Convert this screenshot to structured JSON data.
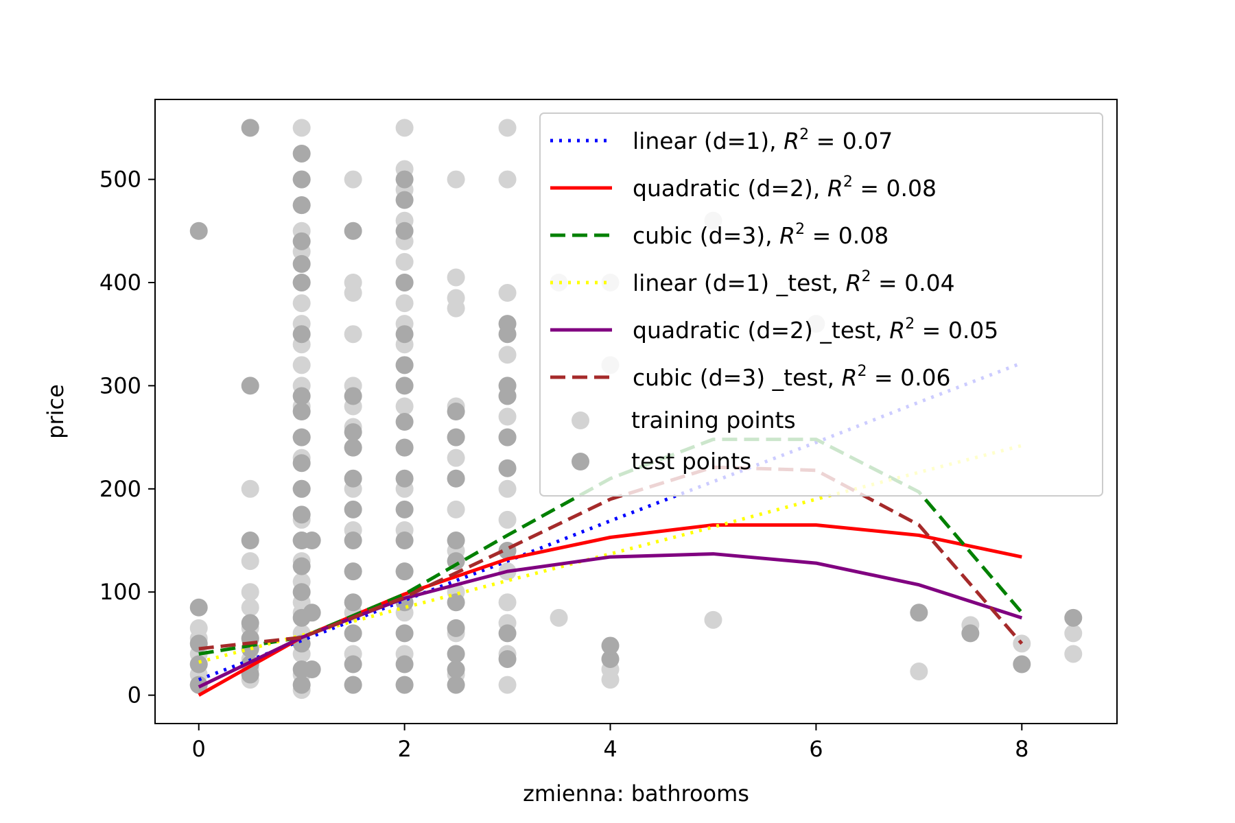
{
  "chart_data": {
    "type": "scatter",
    "xlabel": "zmienna: bathrooms",
    "ylabel": "price",
    "xlim": [
      -0.425,
      8.925
    ],
    "ylim": [
      -27.5,
      577.5
    ],
    "x_ticks": [
      0,
      2,
      4,
      6,
      8
    ],
    "y_ticks": [
      0,
      100,
      200,
      300,
      400,
      500
    ],
    "grid": false,
    "legend_position": "upper-right",
    "lines": [
      {
        "name": "linear (d=1), R^2 = 0.07",
        "label_main": "linear (d=1), ",
        "r2": "0.07",
        "color": "#0000ff",
        "style": "dotted",
        "x": [
          0,
          1,
          2,
          3,
          4,
          5,
          6,
          7,
          8
        ],
        "y": [
          15,
          53,
          92,
          130,
          169,
          207,
          245,
          284,
          322
        ]
      },
      {
        "name": "quadratic (d=2), R^2 = 0.08",
        "label_main": "quadratic (d=2), ",
        "r2": "0.08",
        "color": "#ff0000",
        "style": "solid",
        "x": [
          0,
          1,
          2,
          3,
          4,
          5,
          6,
          7,
          8
        ],
        "y": [
          0,
          56,
          98,
          132,
          153,
          165,
          165,
          155,
          134
        ]
      },
      {
        "name": "cubic (d=3), R^2 = 0.08",
        "label_main": "cubic (d=3), ",
        "r2": "0.08",
        "color": "#008000",
        "style": "dashed",
        "x": [
          0,
          1,
          2,
          3,
          4,
          5,
          6,
          7,
          8
        ],
        "y": [
          40,
          56,
          98,
          155,
          210,
          248,
          248,
          197,
          80
        ]
      },
      {
        "name": "linear (d=1) _test, R^2 = 0.04",
        "label_main": "linear (d=1) _test, ",
        "r2": "0.04",
        "color": "#ffff00",
        "style": "dotted",
        "x": [
          0,
          1,
          2,
          3,
          4,
          5,
          6,
          7,
          8
        ],
        "y": [
          32,
          58,
          85,
          111,
          137,
          163,
          190,
          216,
          242
        ]
      },
      {
        "name": "quadratic (d=2) _test, R^2 = 0.05",
        "label_main": "quadratic (d=2) _test, ",
        "r2": "0.05",
        "color": "#800080",
        "style": "solid",
        "x": [
          0,
          1,
          2,
          3,
          4,
          5,
          6,
          7,
          8
        ],
        "y": [
          8,
          56,
          94,
          120,
          134,
          137,
          128,
          107,
          75
        ]
      },
      {
        "name": "cubic (d=3) _test, R^2 = 0.06",
        "label_main": "cubic (d=3) _test, ",
        "r2": "0.06",
        "color": "#a52a2a",
        "style": "dashed",
        "x": [
          0,
          1,
          2,
          3,
          4,
          5,
          6,
          7,
          8
        ],
        "y": [
          45,
          56,
          95,
          142,
          190,
          221,
          218,
          165,
          50
        ]
      }
    ],
    "scatter_series": [
      {
        "name": "training points",
        "color": "#d3d3d3",
        "points": [
          [
            0,
            10
          ],
          [
            0,
            20
          ],
          [
            0,
            30
          ],
          [
            0,
            40
          ],
          [
            0,
            55
          ],
          [
            0,
            65
          ],
          [
            0.5,
            15
          ],
          [
            0.5,
            25
          ],
          [
            0.5,
            35
          ],
          [
            0.5,
            45
          ],
          [
            0.5,
            55
          ],
          [
            0.5,
            65
          ],
          [
            0.5,
            85
          ],
          [
            0.5,
            100
          ],
          [
            0.5,
            130
          ],
          [
            0.5,
            200
          ],
          [
            0.5,
            550
          ],
          [
            1,
            5
          ],
          [
            1,
            20
          ],
          [
            1,
            40
          ],
          [
            1,
            60
          ],
          [
            1,
            80
          ],
          [
            1,
            90
          ],
          [
            1,
            110
          ],
          [
            1,
            130
          ],
          [
            1,
            150
          ],
          [
            1,
            170
          ],
          [
            1,
            200
          ],
          [
            1,
            230
          ],
          [
            1,
            250
          ],
          [
            1,
            280
          ],
          [
            1,
            300
          ],
          [
            1,
            320
          ],
          [
            1,
            340
          ],
          [
            1,
            360
          ],
          [
            1,
            380
          ],
          [
            1,
            400
          ],
          [
            1,
            430
          ],
          [
            1,
            450
          ],
          [
            1,
            475
          ],
          [
            1,
            500
          ],
          [
            1,
            550
          ],
          [
            1.5,
            10
          ],
          [
            1.5,
            40
          ],
          [
            1.5,
            80
          ],
          [
            1.5,
            120
          ],
          [
            1.5,
            160
          ],
          [
            1.5,
            200
          ],
          [
            1.5,
            240
          ],
          [
            1.5,
            260
          ],
          [
            1.5,
            280
          ],
          [
            1.5,
            300
          ],
          [
            1.5,
            350
          ],
          [
            1.5,
            390
          ],
          [
            1.5,
            400
          ],
          [
            1.5,
            500
          ],
          [
            2,
            10
          ],
          [
            2,
            40
          ],
          [
            2,
            80
          ],
          [
            2,
            120
          ],
          [
            2,
            160
          ],
          [
            2,
            200
          ],
          [
            2,
            240
          ],
          [
            2,
            280
          ],
          [
            2,
            320
          ],
          [
            2,
            340
          ],
          [
            2,
            360
          ],
          [
            2,
            380
          ],
          [
            2,
            400
          ],
          [
            2,
            420
          ],
          [
            2,
            440
          ],
          [
            2,
            460
          ],
          [
            2,
            490
          ],
          [
            2,
            510
          ],
          [
            2,
            550
          ],
          [
            2.5,
            20
          ],
          [
            2.5,
            60
          ],
          [
            2.5,
            100
          ],
          [
            2.5,
            140
          ],
          [
            2.5,
            180
          ],
          [
            2.5,
            210
          ],
          [
            2.5,
            230
          ],
          [
            2.5,
            250
          ],
          [
            2.5,
            280
          ],
          [
            2.5,
            375
          ],
          [
            2.5,
            385
          ],
          [
            2.5,
            405
          ],
          [
            2.5,
            500
          ],
          [
            3,
            10
          ],
          [
            3,
            40
          ],
          [
            3,
            70
          ],
          [
            3,
            90
          ],
          [
            3,
            120
          ],
          [
            3,
            170
          ],
          [
            3,
            200
          ],
          [
            3,
            250
          ],
          [
            3,
            270
          ],
          [
            3,
            290
          ],
          [
            3,
            330
          ],
          [
            3,
            390
          ],
          [
            3,
            500
          ],
          [
            3,
            550
          ],
          [
            3.5,
            75
          ],
          [
            3.5,
            400
          ],
          [
            4,
            15
          ],
          [
            4,
            25
          ],
          [
            4,
            320
          ],
          [
            4,
            400
          ],
          [
            5,
            73
          ],
          [
            5,
            460
          ],
          [
            6,
            360
          ],
          [
            7,
            23
          ],
          [
            7.5,
            68
          ],
          [
            8,
            50
          ],
          [
            8.5,
            40
          ],
          [
            8.5,
            60
          ]
        ]
      },
      {
        "name": "test points",
        "color": "#a9a9a9",
        "points": [
          [
            0,
            10
          ],
          [
            0,
            30
          ],
          [
            0,
            50
          ],
          [
            0,
            85
          ],
          [
            0,
            450
          ],
          [
            0.5,
            20
          ],
          [
            0.5,
            30
          ],
          [
            0.5,
            45
          ],
          [
            0.5,
            55
          ],
          [
            0.5,
            70
          ],
          [
            0.5,
            150
          ],
          [
            0.5,
            300
          ],
          [
            0.5,
            550
          ],
          [
            1,
            10
          ],
          [
            1,
            25
          ],
          [
            1,
            50
          ],
          [
            1,
            75
          ],
          [
            1,
            100
          ],
          [
            1,
            125
          ],
          [
            1,
            150
          ],
          [
            1,
            175
          ],
          [
            1,
            200
          ],
          [
            1,
            225
          ],
          [
            1,
            250
          ],
          [
            1,
            275
          ],
          [
            1,
            290
          ],
          [
            1,
            350
          ],
          [
            1,
            400
          ],
          [
            1,
            418
          ],
          [
            1,
            440
          ],
          [
            1,
            475
          ],
          [
            1,
            500
          ],
          [
            1,
            525
          ],
          [
            1.1,
            25
          ],
          [
            1.1,
            80
          ],
          [
            1.1,
            150
          ],
          [
            1.5,
            10
          ],
          [
            1.5,
            30
          ],
          [
            1.5,
            60
          ],
          [
            1.5,
            90
          ],
          [
            1.5,
            120
          ],
          [
            1.5,
            150
          ],
          [
            1.5,
            180
          ],
          [
            1.5,
            210
          ],
          [
            1.5,
            240
          ],
          [
            1.5,
            255
          ],
          [
            1.5,
            290
          ],
          [
            1.5,
            450
          ],
          [
            2,
            10
          ],
          [
            2,
            30
          ],
          [
            2,
            60
          ],
          [
            2,
            90
          ],
          [
            2,
            120
          ],
          [
            2,
            150
          ],
          [
            2,
            180
          ],
          [
            2,
            210
          ],
          [
            2,
            240
          ],
          [
            2,
            265
          ],
          [
            2,
            300
          ],
          [
            2,
            320
          ],
          [
            2,
            350
          ],
          [
            2,
            400
          ],
          [
            2,
            450
          ],
          [
            2,
            480
          ],
          [
            2,
            500
          ],
          [
            2.5,
            10
          ],
          [
            2.5,
            25
          ],
          [
            2.5,
            40
          ],
          [
            2.5,
            65
          ],
          [
            2.5,
            90
          ],
          [
            2.5,
            130
          ],
          [
            2.5,
            150
          ],
          [
            2.5,
            210
          ],
          [
            2.5,
            250
          ],
          [
            2.5,
            275
          ],
          [
            3,
            35
          ],
          [
            3,
            60
          ],
          [
            3,
            140
          ],
          [
            3,
            220
          ],
          [
            3,
            250
          ],
          [
            3,
            290
          ],
          [
            3,
            300
          ],
          [
            3,
            350
          ],
          [
            3,
            360
          ],
          [
            4,
            35
          ],
          [
            4,
            48
          ],
          [
            7,
            80
          ],
          [
            7.5,
            60
          ],
          [
            8,
            30
          ],
          [
            8.5,
            75
          ]
        ]
      }
    ]
  }
}
